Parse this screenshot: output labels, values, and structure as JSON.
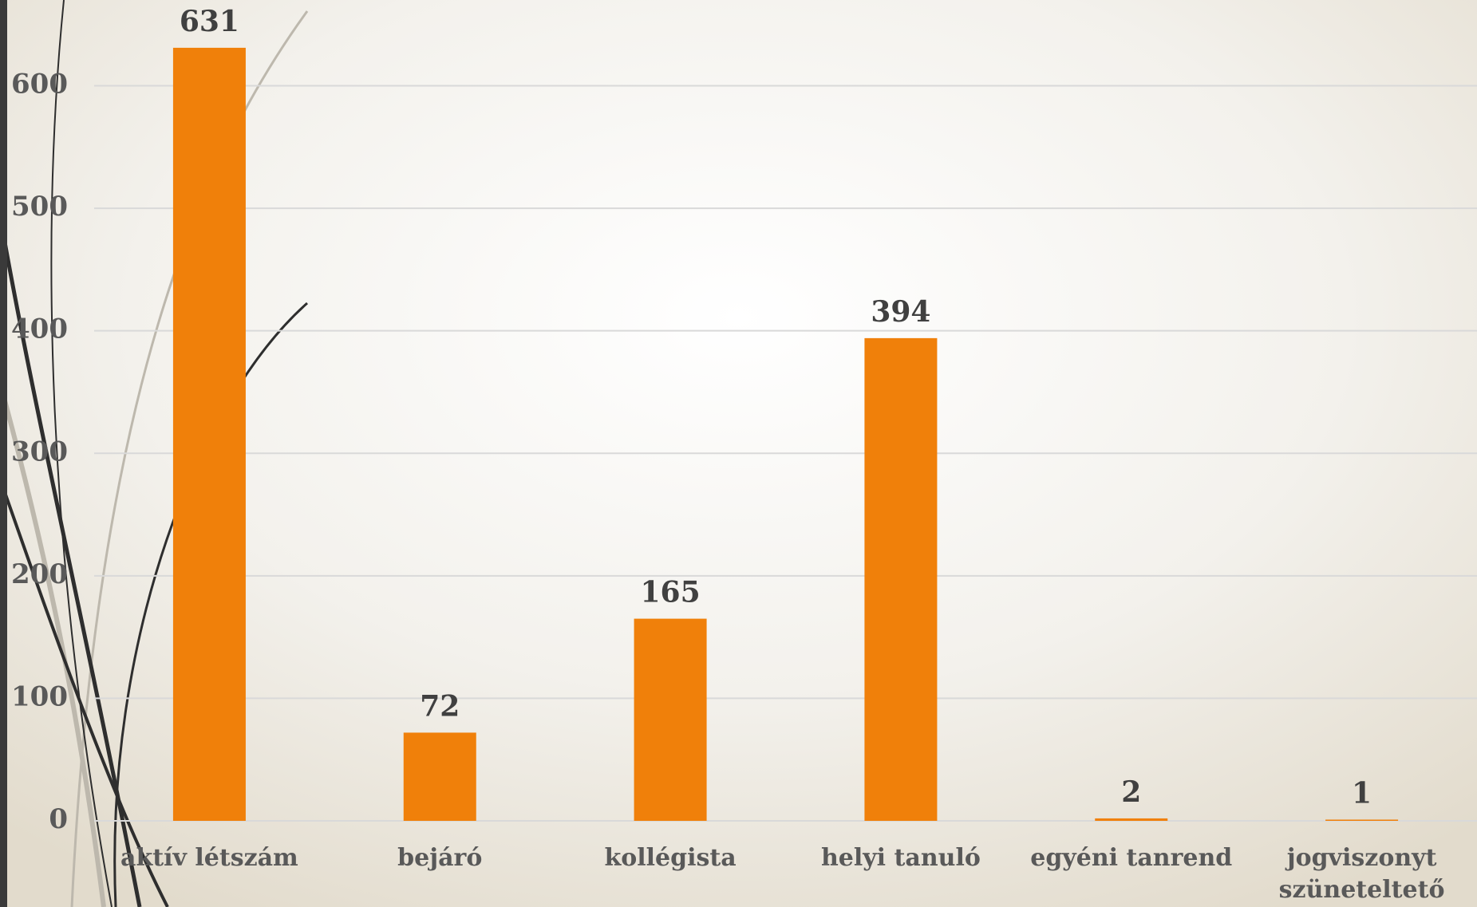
{
  "chart_data": {
    "type": "bar",
    "categories": [
      "aktív létszám",
      "bejáró",
      "kollégista",
      "helyi tanuló",
      "egyéni tanrend",
      "jogviszonyt szüneteltető"
    ],
    "values": [
      631,
      72,
      165,
      394,
      2,
      1
    ],
    "color": "#f0800a",
    "ylim": [
      0,
      670
    ],
    "yticks": [
      0,
      100,
      200,
      300,
      400,
      500,
      600
    ],
    "grid": true
  }
}
